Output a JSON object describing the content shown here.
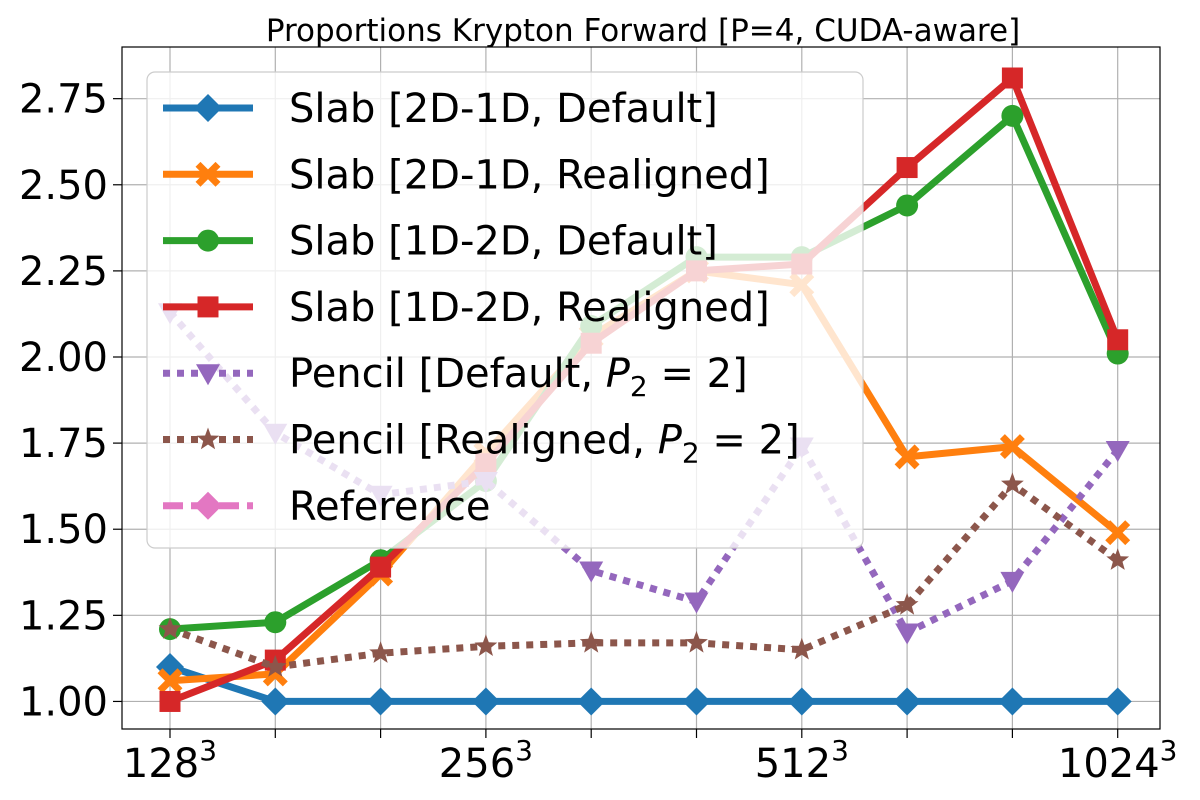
{
  "chart_data": {
    "type": "line",
    "title": "Proportions Krypton Forward [P=4, CUDA-aware]",
    "xlabel": "",
    "ylabel": "",
    "x_tick_labels": [
      {
        "base": "128",
        "exp": "3",
        "index": 0
      },
      {
        "base": "256",
        "exp": "3",
        "index": 3
      },
      {
        "base": "512",
        "exp": "3",
        "index": 6
      },
      {
        "base": "1024",
        "exp": "3",
        "index": 9
      }
    ],
    "x_count": 10,
    "ylim": [
      0.92,
      2.9
    ],
    "y_ticks": [
      "1.00",
      "1.25",
      "1.50",
      "1.75",
      "2.00",
      "2.25",
      "2.50",
      "2.75"
    ],
    "grid": true,
    "legend_position": "upper-left",
    "series": [
      {
        "name": "Slab [2D-1D, Default]",
        "color": "#1f77b4",
        "marker": "diamond",
        "dash": "solid",
        "values": [
          1.1,
          1.0,
          1.0,
          1.0,
          1.0,
          1.0,
          1.0,
          1.0,
          1.0,
          1.0
        ]
      },
      {
        "name": "Slab [2D-1D, Realigned]",
        "color": "#ff7f0e",
        "marker": "x",
        "dash": "solid",
        "values": [
          1.06,
          1.08,
          1.37,
          1.72,
          2.06,
          2.25,
          2.21,
          1.71,
          1.74,
          1.49
        ]
      },
      {
        "name": "Slab [1D-2D, Default]",
        "color": "#2ca02c",
        "marker": "circle",
        "dash": "solid",
        "values": [
          1.21,
          1.23,
          1.41,
          1.64,
          2.09,
          2.29,
          2.29,
          2.44,
          2.7,
          2.01
        ]
      },
      {
        "name": "Slab [1D-2D, Realigned]",
        "color": "#d62728",
        "marker": "square",
        "dash": "solid",
        "values": [
          1.0,
          1.12,
          1.39,
          1.69,
          2.04,
          2.25,
          2.27,
          2.55,
          2.81,
          2.05
        ]
      },
      {
        "name": "Pencil [Default, P_2 = 2]",
        "name_prefix": "Pencil [Default, ",
        "name_var": "P",
        "name_sub": "2",
        "name_suffix": " = 2]",
        "color": "#9467bd",
        "marker": "triangle-down",
        "dash": "dotted",
        "values": [
          2.13,
          1.78,
          1.6,
          1.64,
          1.38,
          1.29,
          1.74,
          1.2,
          1.35,
          1.73
        ]
      },
      {
        "name": "Pencil [Realigned, P_2 = 2]",
        "name_prefix": "Pencil [Realigned, ",
        "name_var": "P",
        "name_sub": "2",
        "name_suffix": " = 2]",
        "color": "#8c564b",
        "marker": "star",
        "dash": "dotted",
        "values": [
          1.21,
          1.1,
          1.14,
          1.16,
          1.17,
          1.17,
          1.15,
          1.28,
          1.63,
          1.41
        ]
      },
      {
        "name": "Reference",
        "color": "#e377c2",
        "marker": "diamond",
        "dash": "dashed",
        "values": []
      }
    ]
  }
}
